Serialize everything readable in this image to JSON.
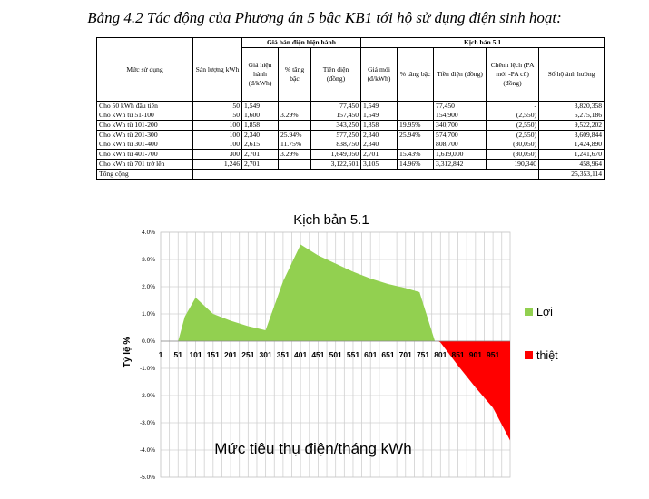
{
  "caption": "Bảng 4.2 Tác động của Phương án 5 bậc KB1 tới hộ sử dụng điện sinh hoạt:",
  "table": {
    "group_current": "Giá bán điện hiện hành",
    "group_scenario": "Kịch bản 5.1",
    "headers": {
      "level": "Mức sử dụng",
      "output": "Sản lượng kWh",
      "cur_price": "Giá hiện hành (đ/kWh)",
      "cur_pct": "% tăng bậc",
      "cur_bill": "Tiền điện (đồng)",
      "new_price": "Giá mới (đ/kWh)",
      "new_pct": "% tăng bậc",
      "new_bill": "Tiền điện (đồng)",
      "diff": "Chênh lệch (PA mới -PA cũ) (đồng)",
      "households": "Số hộ ảnh hưởng"
    },
    "rows": [
      {
        "level": "Cho 50 kWh đầu tiên",
        "kwh": "50",
        "cur_price": "1,549",
        "cur_pct": "",
        "cur_bill": "77,450",
        "new_price": "1,549",
        "new_pct": "",
        "new_bill": "77,450",
        "diff": "-",
        "households": "3,820,358"
      },
      {
        "level": "Cho kWh từ 51-100",
        "kwh": "50",
        "cur_price": "1,600",
        "cur_pct": "3.29%",
        "cur_bill": "157,450",
        "new_price": "1,549",
        "new_pct": "",
        "new_bill": "154,900",
        "diff": "(2,550)",
        "households": "5,275,186"
      },
      {
        "level": "Cho kWh từ 101-200",
        "kwh": "100",
        "cur_price": "1,858",
        "cur_pct": "",
        "cur_bill": "343,250",
        "new_price": "1,858",
        "new_pct": "19.95%",
        "new_bill": "340,700",
        "diff": "(2,550)",
        "households": "9,522,202"
      },
      {
        "level": "Cho kWh từ 201-300",
        "kwh": "100",
        "cur_price": "2,340",
        "cur_pct": "25.94%",
        "cur_bill": "577,250",
        "new_price": "2,340",
        "new_pct": "25.94%",
        "new_bill": "574,700",
        "diff": "(2,550)",
        "households": "3,609,844"
      },
      {
        "level": "Cho kWh từ 301-400",
        "kwh": "100",
        "cur_price": "2,615",
        "cur_pct": "11.75%",
        "cur_bill": "838,750",
        "new_price": "2,340",
        "new_pct": "",
        "new_bill": "808,700",
        "diff": "(30,050)",
        "households": "1,424,890"
      },
      {
        "level": "Cho kWh từ 401-700",
        "kwh": "300",
        "cur_price": "2,701",
        "cur_pct": "3.29%",
        "cur_bill": "1,649,050",
        "new_price": "2,701",
        "new_pct": "15.43%",
        "new_bill": "1,619,000",
        "diff": "(30,050)",
        "households": "1,241,670"
      },
      {
        "level": "Cho kWh từ 701 trở lên",
        "kwh": "1,246",
        "cur_price": "2,701",
        "cur_pct": "",
        "cur_bill": "3,122,501",
        "new_price": "3,105",
        "new_pct": "14.96%",
        "new_bill": "3,312,842",
        "diff": "190,340",
        "households": "458,964"
      }
    ],
    "total_label": "Tổng cộng",
    "total_value": "25,353,114"
  },
  "chart_data": {
    "type": "area",
    "title": "Kịch bản 5.1",
    "xlabel": "Mức tiêu thụ điện/tháng kWh",
    "ylabel": "Tỷ lệ %",
    "xlim": [
      1,
      1000
    ],
    "ylim": [
      -5.0,
      4.0
    ],
    "x_ticks": [
      "1",
      "51",
      "101",
      "151",
      "201",
      "251",
      "301",
      "351",
      "401",
      "451",
      "501",
      "551",
      "601",
      "651",
      "701",
      "751",
      "801",
      "851",
      "901",
      "951"
    ],
    "y_ticks": [
      "4.0%",
      "3.0%",
      "2.0%",
      "1.0%",
      "0.0%",
      "-1.0%",
      "-2.0%",
      "-3.0%",
      "-4.0%",
      "-5.0%"
    ],
    "grid": true,
    "legend_position": "right",
    "colors": {
      "gain": "#92D050",
      "loss": "#FF0000"
    },
    "series": [
      {
        "name": "Lợi",
        "points": [
          [
            51,
            0.0
          ],
          [
            70,
            0.9
          ],
          [
            101,
            1.6
          ],
          [
            151,
            1.0
          ],
          [
            201,
            0.75
          ],
          [
            251,
            0.55
          ],
          [
            301,
            0.4
          ],
          [
            351,
            2.2
          ],
          [
            401,
            3.55
          ],
          [
            451,
            3.15
          ],
          [
            501,
            2.85
          ],
          [
            551,
            2.55
          ],
          [
            601,
            2.3
          ],
          [
            651,
            2.1
          ],
          [
            701,
            1.95
          ],
          [
            741,
            1.8
          ],
          [
            785,
            0.0
          ]
        ]
      },
      {
        "name": "thiệt",
        "points": [
          [
            795,
            0.0
          ],
          [
            801,
            -0.05
          ],
          [
            851,
            -0.9
          ],
          [
            901,
            -1.7
          ],
          [
            951,
            -2.45
          ],
          [
            1000,
            -3.65
          ]
        ]
      }
    ]
  }
}
